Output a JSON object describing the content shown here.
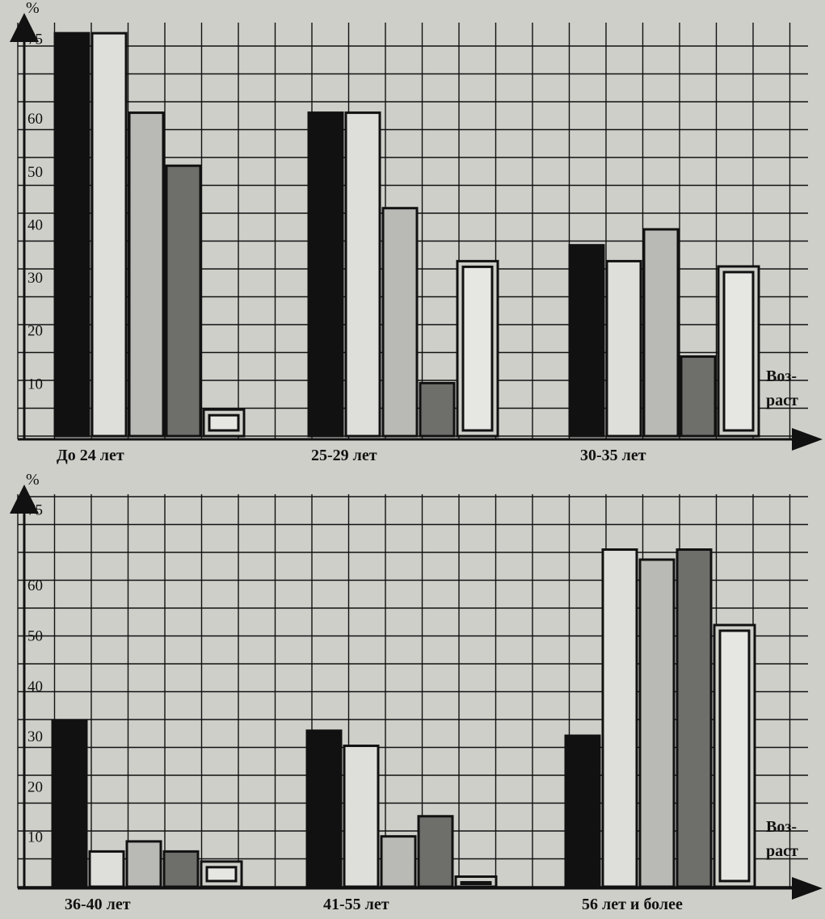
{
  "colors": {
    "background": "#cfcfca",
    "grid": "#111111",
    "series": [
      "#111111",
      "#dededb",
      "#b9b9b5",
      "#6e6e6b",
      "#e6e6e3"
    ],
    "bar_outline": "#111111"
  },
  "chart_data": [
    {
      "type": "bar",
      "ylabel": "%",
      "xlabel": "Воз-\nраст",
      "xlabel_lines": [
        "Воз-",
        "раст"
      ],
      "yticks": [
        10,
        20,
        30,
        40,
        50,
        60,
        75
      ],
      "ylim": [
        0,
        78
      ],
      "categories": [
        "До 24 лет",
        "25-29 лет",
        "30-35 лет"
      ],
      "series": [
        {
          "values": [
            76,
            61,
            36
          ]
        },
        {
          "values": [
            76,
            61,
            33
          ]
        },
        {
          "values": [
            61,
            43,
            39
          ]
        },
        {
          "values": [
            51,
            10,
            15
          ]
        },
        {
          "values": [
            5,
            33,
            32
          ]
        }
      ],
      "grid": true
    },
    {
      "type": "bar",
      "ylabel": "%",
      "xlabel": "Воз-\nраст",
      "xlabel_lines": [
        "Воз-",
        "раст"
      ],
      "yticks": [
        10,
        20,
        30,
        40,
        50,
        60,
        75
      ],
      "ylim": [
        0,
        78
      ],
      "categories": [
        "36-40 лет",
        "41-55 лет",
        "56 лет и более"
      ],
      "series": [
        {
          "values": [
            33,
            31,
            30
          ]
        },
        {
          "values": [
            7,
            28,
            67
          ]
        },
        {
          "values": [
            9,
            10,
            65
          ]
        },
        {
          "values": [
            7,
            14,
            67
          ]
        },
        {
          "values": [
            5,
            2,
            52
          ]
        }
      ],
      "grid": true
    }
  ]
}
